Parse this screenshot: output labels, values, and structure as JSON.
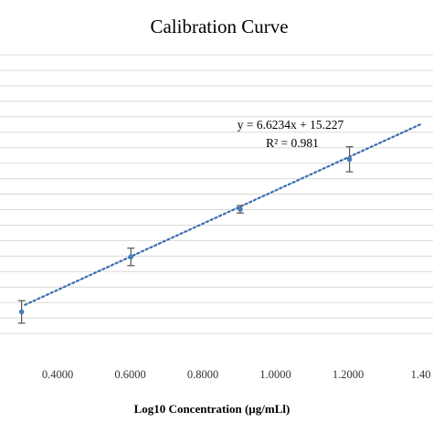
{
  "chart_data": {
    "type": "scatter",
    "title": "Calibration Curve",
    "xlabel": "Log10 Concentration (µg/mLl)",
    "ylabel": "",
    "xlim": [
      0.3,
      1.4
    ],
    "ylim": [
      14,
      26
    ],
    "x_ticks": [
      "0.4000",
      "0.6000",
      "0.8000",
      "1.0000",
      "1.2000",
      "1.40"
    ],
    "x_tick_values": [
      0.4,
      0.6,
      0.8,
      1.0,
      1.2,
      1.4
    ],
    "grid": true,
    "series": [
      {
        "x": [
          0.301,
          0.602,
          0.903,
          1.204
        ],
        "y": [
          17.0,
          19.2,
          21.1,
          23.1
        ],
        "error": [
          0.45,
          0.35,
          0.15,
          0.5
        ]
      }
    ],
    "trendline": {
      "slope": 6.6234,
      "intercept": 15.227,
      "equation": "y = 6.6234x + 15.227",
      "r_squared": "R² = 0.981"
    },
    "colors": {
      "marker": "#4a7ab8",
      "trendline": "#3b6db0",
      "error_bar": "#555555",
      "grid": "#d9d9d9"
    }
  }
}
